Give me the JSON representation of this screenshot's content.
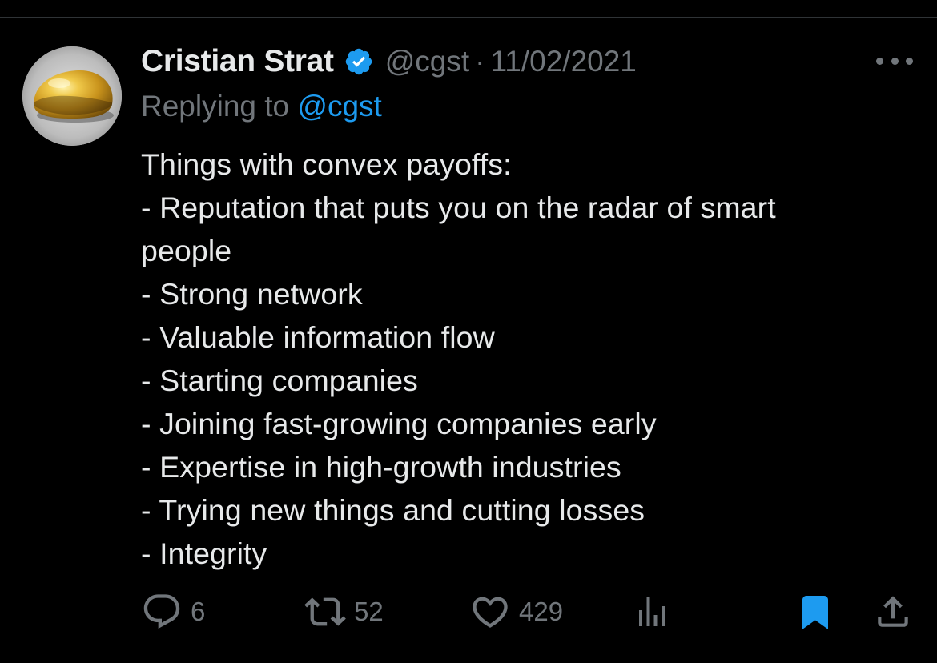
{
  "tweet": {
    "author": {
      "display_name": "Cristian Strat",
      "handle": "@cgst",
      "verified": true
    },
    "separator": "·",
    "date": "11/02/2021",
    "reply": {
      "prefix": "Replying to ",
      "mention": "@cgst"
    },
    "lines": [
      "Things with convex payoffs:",
      "- Reputation that puts you on the radar of smart",
      "people",
      "- Strong network",
      "- Valuable information flow",
      "- Starting companies",
      "- Joining fast-growing companies early",
      "- Expertise in high-growth industries",
      "- Trying new things and cutting losses",
      "- Integrity"
    ],
    "stats": {
      "replies": "6",
      "retweets": "52",
      "likes": "429"
    }
  },
  "icons": {
    "avatar": "golden-egg-avatar",
    "verified": "verified-badge-icon",
    "more": "more-icon",
    "reply": "reply-icon",
    "retweet": "retweet-icon",
    "like": "heart-icon",
    "views": "analytics-icon",
    "bookmark": "bookmark-icon",
    "share": "share-icon"
  },
  "colors": {
    "background": "#000000",
    "text_primary": "#e7e9ea",
    "text_secondary": "#71767b",
    "accent": "#1d9bf0"
  }
}
